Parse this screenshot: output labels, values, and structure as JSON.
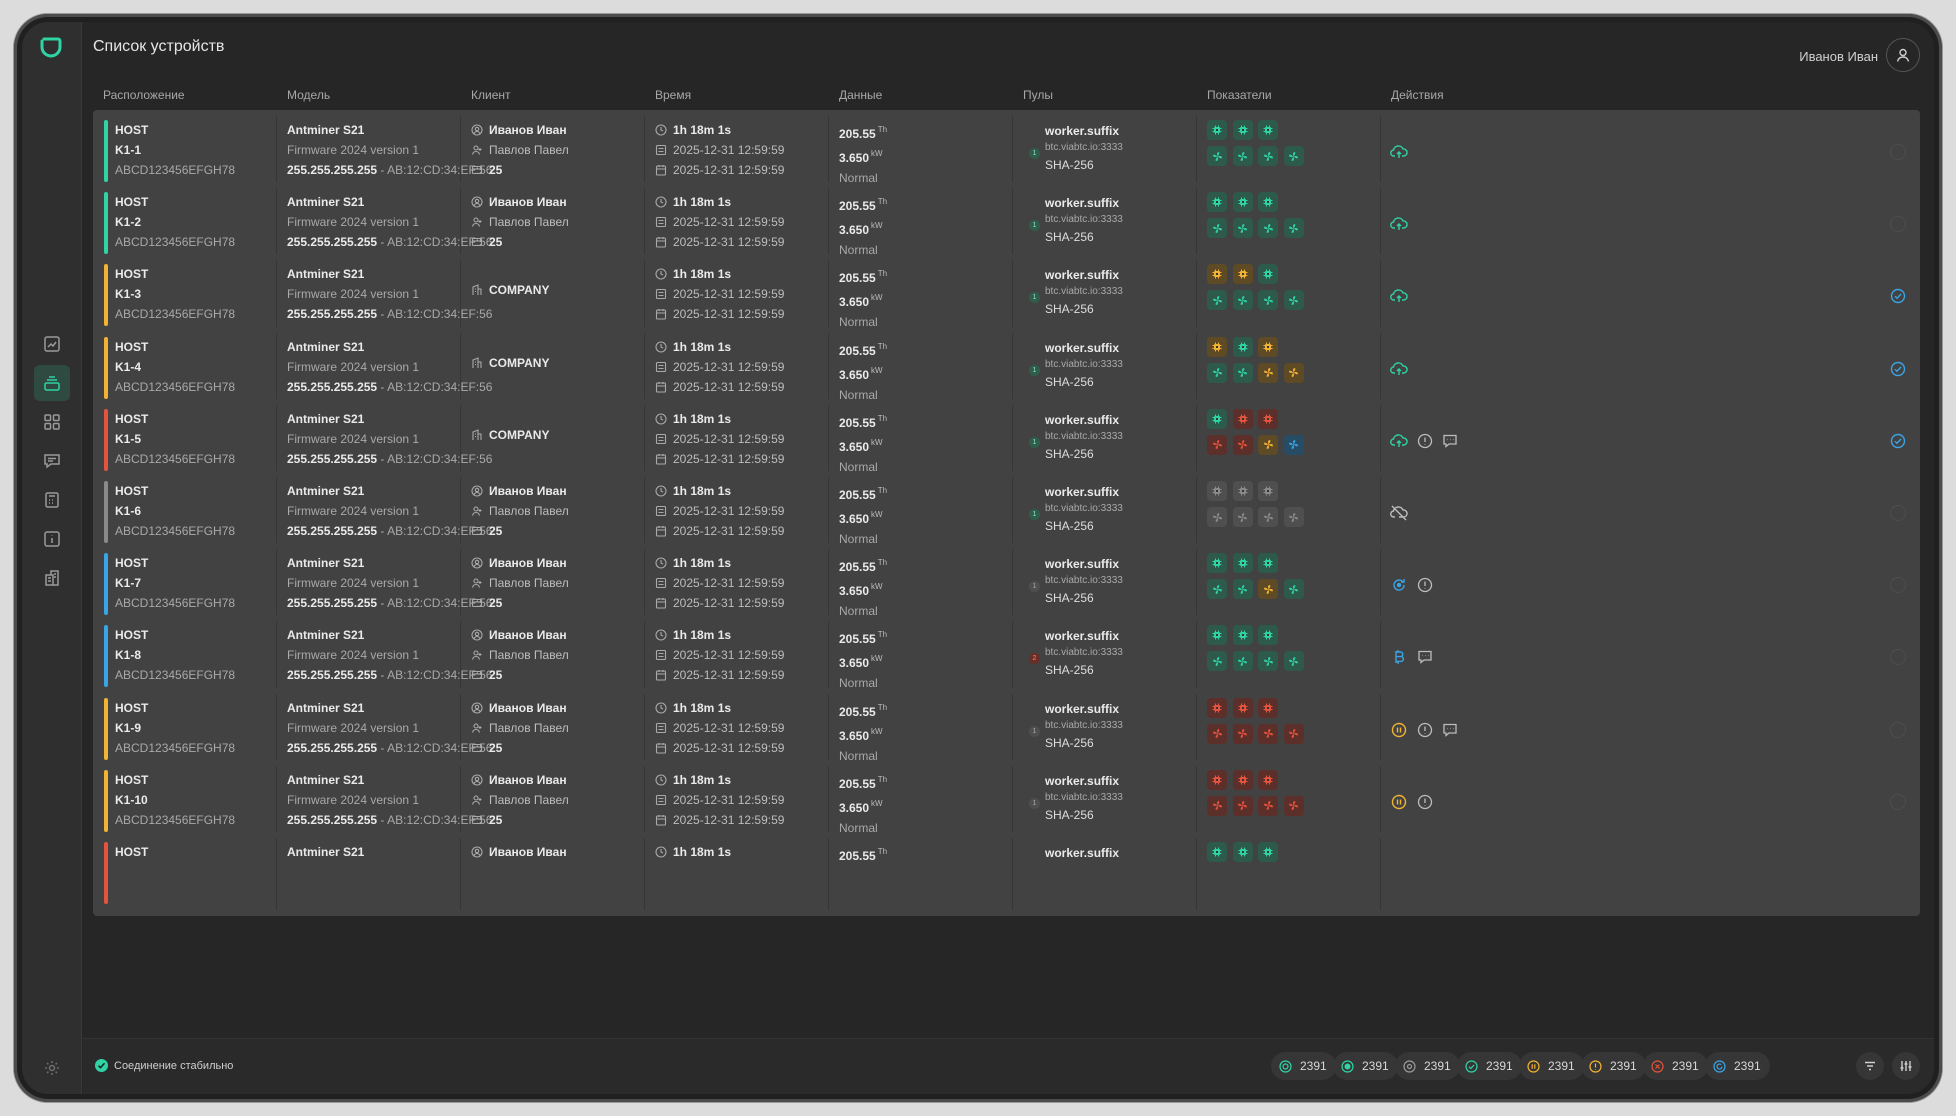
{
  "header": {
    "title": "Список устройств",
    "user_name": "Иванов Иван"
  },
  "columns": [
    "Расположение",
    "Модель",
    "Клиент",
    "Время",
    "Данные",
    "Пулы",
    "Показатели",
    "Действия"
  ],
  "colors": {
    "green": "#2fd3a4",
    "yellow": "#f2b233",
    "red": "#e4533d",
    "gray": "#8a8a8a",
    "blue": "#3aa4e6",
    "accent": "#2fd3a4"
  },
  "rows": [
    {
      "host": "HOST",
      "name": "K1-1",
      "serial": "ABCD123456EFGH78",
      "model": "Antminer S21",
      "firmware": "Firmware 2024 version 1",
      "ip": "255.255.255.255",
      "mac": " - AB:12:CD:34:EF:56",
      "client_type": "person",
      "client_owner": "Иванов Иван",
      "client_manager": "Павлов Павел",
      "client_rack": "25",
      "uptime": "1h 18m 1s",
      "date1": "2025-12-31 12:59:59",
      "date2": "2025-12-31 12:59:59",
      "hashrate": "205.55",
      "hash_unit": "Th",
      "power": "3.650",
      "power_unit": "kW",
      "state": "Normal",
      "worker": "worker.suffix",
      "pool_url": "btc.viabtc.io:3333",
      "algo": "SHA-256",
      "pool_badge": "1",
      "pool_badge_color": "green",
      "status": "green",
      "chips": [
        "green",
        "green",
        "green"
      ],
      "fans": [
        "green",
        "green",
        "green",
        "green"
      ],
      "actions": [
        "cloud"
      ],
      "checked": false
    },
    {
      "host": "HOST",
      "name": "K1-2",
      "serial": "ABCD123456EFGH78",
      "model": "Antminer S21",
      "firmware": "Firmware 2024 version 1",
      "ip": "255.255.255.255",
      "mac": " - AB:12:CD:34:EF:56",
      "client_type": "person",
      "client_owner": "Иванов Иван",
      "client_manager": "Павлов Павел",
      "client_rack": "25",
      "uptime": "1h 18m 1s",
      "date1": "2025-12-31 12:59:59",
      "date2": "2025-12-31 12:59:59",
      "hashrate": "205.55",
      "hash_unit": "Th",
      "power": "3.650",
      "power_unit": "kW",
      "state": "Normal",
      "worker": "worker.suffix",
      "pool_url": "btc.viabtc.io:3333",
      "algo": "SHA-256",
      "pool_badge": "1",
      "pool_badge_color": "green",
      "status": "green",
      "chips": [
        "green",
        "green",
        "green"
      ],
      "fans": [
        "green",
        "green",
        "green",
        "green"
      ],
      "actions": [
        "cloud"
      ],
      "checked": false
    },
    {
      "host": "HOST",
      "name": "K1-3",
      "serial": "ABCD123456EFGH78",
      "model": "Antminer S21",
      "firmware": "Firmware 2024 version 1",
      "ip": "255.255.255.255",
      "mac": " - AB:12:CD:34:EF:56",
      "client_type": "company",
      "client_company": "COMPANY",
      "uptime": "1h 18m 1s",
      "date1": "2025-12-31 12:59:59",
      "date2": "2025-12-31 12:59:59",
      "hashrate": "205.55",
      "hash_unit": "Th",
      "power": "3.650",
      "power_unit": "kW",
      "state": "Normal",
      "worker": "worker.suffix",
      "pool_url": "btc.viabtc.io:3333",
      "algo": "SHA-256",
      "pool_badge": "1",
      "pool_badge_color": "green",
      "status": "yellow",
      "chips": [
        "yellow",
        "yellow",
        "green"
      ],
      "fans": [
        "green",
        "green",
        "green",
        "green"
      ],
      "actions": [
        "cloud"
      ],
      "checked": true
    },
    {
      "host": "HOST",
      "name": "K1-4",
      "serial": "ABCD123456EFGH78",
      "model": "Antminer S21",
      "firmware": "Firmware 2024 version 1",
      "ip": "255.255.255.255",
      "mac": " - AB:12:CD:34:EF:56",
      "client_type": "company",
      "client_company": "COMPANY",
      "uptime": "1h 18m 1s",
      "date1": "2025-12-31 12:59:59",
      "date2": "2025-12-31 12:59:59",
      "hashrate": "205.55",
      "hash_unit": "Th",
      "power": "3.650",
      "power_unit": "kW",
      "state": "Normal",
      "worker": "worker.suffix",
      "pool_url": "btc.viabtc.io:3333",
      "algo": "SHA-256",
      "pool_badge": "1",
      "pool_badge_color": "green",
      "status": "yellow",
      "chips": [
        "yellow",
        "green",
        "yellow"
      ],
      "fans": [
        "green",
        "green",
        "yellow",
        "yellow"
      ],
      "actions": [
        "cloud"
      ],
      "checked": true
    },
    {
      "host": "HOST",
      "name": "K1-5",
      "serial": "ABCD123456EFGH78",
      "model": "Antminer S21",
      "firmware": "Firmware 2024 version 1",
      "ip": "255.255.255.255",
      "mac": " - AB:12:CD:34:EF:56",
      "client_type": "company",
      "client_company": "COMPANY",
      "uptime": "1h 18m 1s",
      "date1": "2025-12-31 12:59:59",
      "date2": "2025-12-31 12:59:59",
      "hashrate": "205.55",
      "hash_unit": "Th",
      "power": "3.650",
      "power_unit": "kW",
      "state": "Normal",
      "worker": "worker.suffix",
      "pool_url": "btc.viabtc.io:3333",
      "algo": "SHA-256",
      "pool_badge": "1",
      "pool_badge_color": "green",
      "status": "red",
      "chips": [
        "green",
        "red",
        "red"
      ],
      "fans": [
        "red",
        "red",
        "yellow",
        "blue"
      ],
      "actions": [
        "cloud",
        "alert",
        "message"
      ],
      "checked": true
    },
    {
      "host": "HOST",
      "name": "K1-6",
      "serial": "ABCD123456EFGH78",
      "model": "Antminer S21",
      "firmware": "Firmware 2024 version 1",
      "ip": "255.255.255.255",
      "mac": " - AB:12:CD:34:EF:56",
      "client_type": "person",
      "client_owner": "Иванов Иван",
      "client_manager": "Павлов Павел",
      "client_rack": "25",
      "uptime": "1h 18m 1s",
      "date1": "2025-12-31 12:59:59",
      "date2": "2025-12-31 12:59:59",
      "hashrate": "205.55",
      "hash_unit": "Th",
      "power": "3.650",
      "power_unit": "kW",
      "state": "Normal",
      "worker": "worker.suffix",
      "pool_url": "btc.viabtc.io:3333",
      "algo": "SHA-256",
      "pool_badge": "1",
      "pool_badge_color": "green",
      "status": "gray",
      "chips": [
        "gray",
        "gray",
        "gray"
      ],
      "fans": [
        "gray",
        "gray",
        "gray",
        "gray"
      ],
      "actions": [
        "cloud-off"
      ],
      "checked": false
    },
    {
      "host": "HOST",
      "name": "K1-7",
      "serial": "ABCD123456EFGH78",
      "model": "Antminer S21",
      "firmware": "Firmware 2024 version 1",
      "ip": "255.255.255.255",
      "mac": " - AB:12:CD:34:EF:56",
      "client_type": "person",
      "client_owner": "Иванов Иван",
      "client_manager": "Павлов Павел",
      "client_rack": "25",
      "uptime": "1h 18m 1s",
      "date1": "2025-12-31 12:59:59",
      "date2": "2025-12-31 12:59:59",
      "hashrate": "205.55",
      "hash_unit": "Th",
      "power": "3.650",
      "power_unit": "kW",
      "state": "Normal",
      "worker": "worker.suffix",
      "pool_url": "btc.viabtc.io:3333",
      "algo": "SHA-256",
      "pool_badge": "1",
      "pool_badge_color": "gray",
      "status": "blue",
      "chips": [
        "green",
        "green",
        "green"
      ],
      "fans": [
        "green",
        "green",
        "yellow",
        "green"
      ],
      "actions": [
        "refresh",
        "alert"
      ],
      "checked": false
    },
    {
      "host": "HOST",
      "name": "K1-8",
      "serial": "ABCD123456EFGH78",
      "model": "Antminer S21",
      "firmware": "Firmware 2024 version 1",
      "ip": "255.255.255.255",
      "mac": " - AB:12:CD:34:EF:56",
      "client_type": "person",
      "client_owner": "Иванов Иван",
      "client_manager": "Павлов Павел",
      "client_rack": "25",
      "uptime": "1h 18m 1s",
      "date1": "2025-12-31 12:59:59",
      "date2": "2025-12-31 12:59:59",
      "hashrate": "205.55",
      "hash_unit": "Th",
      "power": "3.650",
      "power_unit": "kW",
      "state": "Normal",
      "worker": "worker.suffix",
      "pool_url": "btc.viabtc.io:3333",
      "algo": "SHA-256",
      "pool_badge": "2",
      "pool_badge_color": "red",
      "status": "blue",
      "chips": [
        "green",
        "green",
        "green"
      ],
      "fans": [
        "green",
        "green",
        "green",
        "green"
      ],
      "actions": [
        "bitcoin",
        "message"
      ],
      "checked": false
    },
    {
      "host": "HOST",
      "name": "K1-9",
      "serial": "ABCD123456EFGH78",
      "model": "Antminer S21",
      "firmware": "Firmware 2024 version 1",
      "ip": "255.255.255.255",
      "mac": " - AB:12:CD:34:EF:56",
      "client_type": "person",
      "client_owner": "Иванов Иван",
      "client_manager": "Павлов Павел",
      "client_rack": "25",
      "uptime": "1h 18m 1s",
      "date1": "2025-12-31 12:59:59",
      "date2": "2025-12-31 12:59:59",
      "hashrate": "205.55",
      "hash_unit": "Th",
      "power": "3.650",
      "power_unit": "kW",
      "state": "Normal",
      "worker": "worker.suffix",
      "pool_url": "btc.viabtc.io:3333",
      "algo": "SHA-256",
      "pool_badge": "1",
      "pool_badge_color": "gray",
      "status": "yellow",
      "chips": [
        "red",
        "red",
        "red"
      ],
      "fans": [
        "red",
        "red",
        "red",
        "red"
      ],
      "actions": [
        "pause",
        "alert",
        "message"
      ],
      "checked": false
    },
    {
      "host": "HOST",
      "name": "K1-10",
      "serial": "ABCD123456EFGH78",
      "model": "Antminer S21",
      "firmware": "Firmware 2024 version 1",
      "ip": "255.255.255.255",
      "mac": " - AB:12:CD:34:EF:56",
      "client_type": "person",
      "client_owner": "Иванов Иван",
      "client_manager": "Павлов Павел",
      "client_rack": "25",
      "uptime": "1h 18m 1s",
      "date1": "2025-12-31 12:59:59",
      "date2": "2025-12-31 12:59:59",
      "hashrate": "205.55",
      "hash_unit": "Th",
      "power": "3.650",
      "power_unit": "kW",
      "state": "Normal",
      "worker": "worker.suffix",
      "pool_url": "btc.viabtc.io:3333",
      "algo": "SHA-256",
      "pool_badge": "1",
      "pool_badge_color": "gray",
      "status": "yellow",
      "chips": [
        "red",
        "red",
        "red"
      ],
      "fans": [
        "red",
        "red",
        "red",
        "red"
      ],
      "actions": [
        "pause",
        "alert"
      ],
      "checked": false
    },
    {
      "host": "HOST",
      "model": "Antminer S21",
      "client_type": "person",
      "client_owner": "Иванов Иван",
      "uptime": "1h 18m 1s",
      "hashrate": "205.55",
      "hash_unit": "Th",
      "worker": "worker.suffix",
      "status": "red",
      "chips": [
        "green",
        "green",
        "green"
      ],
      "partial": true
    }
  ],
  "footer": {
    "connection_text": "Соединение стабильно",
    "counters": [
      {
        "icon": "all-icon",
        "value": "2391",
        "color": "#2fd3a4"
      },
      {
        "icon": "online-icon",
        "value": "2391",
        "color": "#2fd3a4"
      },
      {
        "icon": "offline-icon",
        "value": "2391",
        "color": "#9a9a9a"
      },
      {
        "icon": "ok-icon",
        "value": "2391",
        "color": "#2fd3a4"
      },
      {
        "icon": "paused-icon",
        "value": "2391",
        "color": "#f2b233"
      },
      {
        "icon": "warning-icon",
        "value": "2391",
        "color": "#f2b233"
      },
      {
        "icon": "error-icon",
        "value": "2391",
        "color": "#e4533d"
      },
      {
        "icon": "updating-icon",
        "value": "2391",
        "color": "#3aa4e6"
      }
    ]
  }
}
